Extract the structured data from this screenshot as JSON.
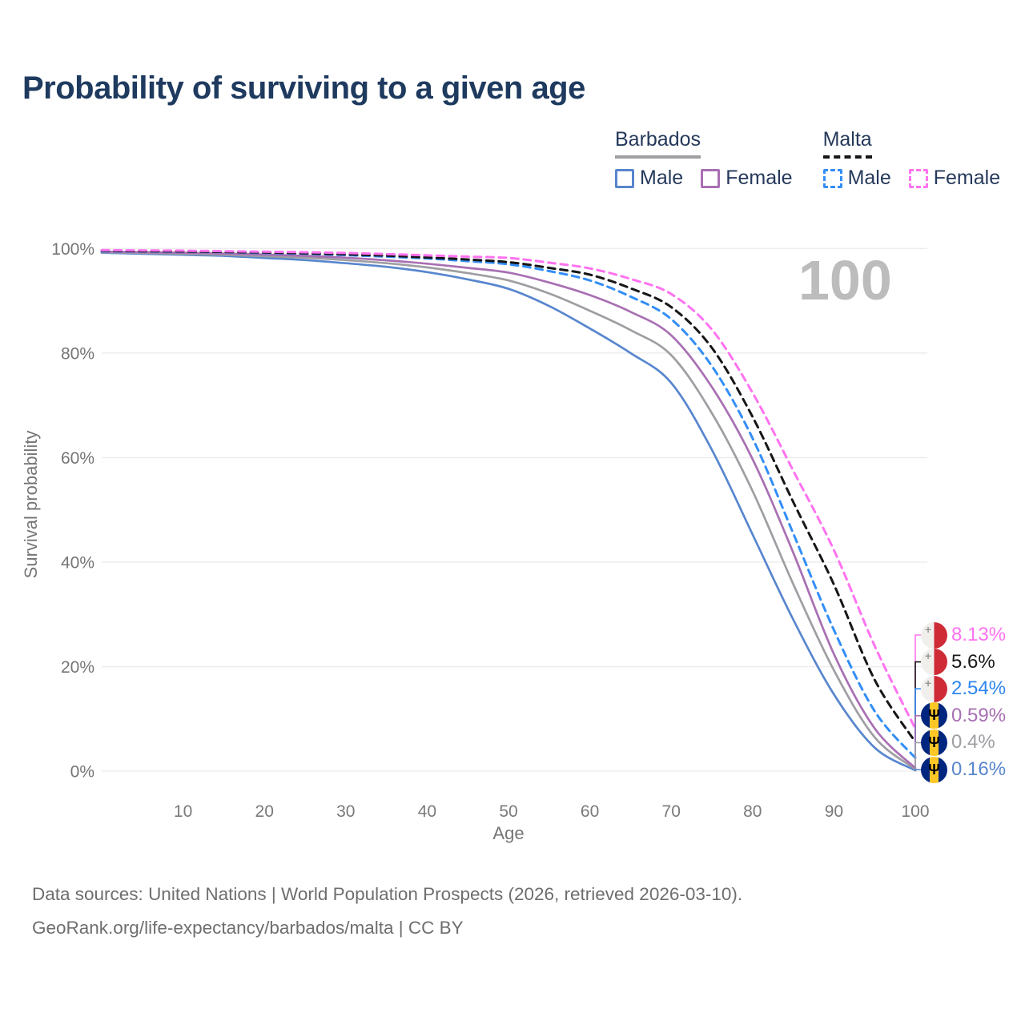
{
  "page": {
    "title": "Probability of surviving to a given age",
    "watermark": "100",
    "footer": {
      "line1": "Data sources: United Nations | World Population Prospects (2026, retrieved 2026-03-10).",
      "line2": "GeoRank.org/life-expectancy/barbados/malta | CC BY"
    }
  },
  "legend": {
    "groups": [
      {
        "name": "Barbados",
        "line_style": "solid",
        "line_color": "#9e9ea3",
        "items": [
          {
            "label": "Male",
            "color": "#5886ce",
            "dashed": false
          },
          {
            "label": "Female",
            "color": "#a86fb3",
            "dashed": false
          }
        ]
      },
      {
        "name": "Malta",
        "line_style": "dashed",
        "line_color": "#161616",
        "items": [
          {
            "label": "Male",
            "color": "#338ef7",
            "dashed": true
          },
          {
            "label": "Female",
            "color": "#ff72f0",
            "dashed": true
          }
        ]
      }
    ]
  },
  "chart_data": {
    "type": "line",
    "title": "Probability of surviving to a given age",
    "xlabel": "Age",
    "ylabel": "Survival probability",
    "xlim": [
      0,
      100
    ],
    "ylim": [
      0,
      100
    ],
    "grid": "horizontal",
    "legend_position": "top-right",
    "x_ticks": [
      10,
      20,
      30,
      40,
      50,
      60,
      70,
      80,
      90,
      100
    ],
    "y_ticks": [
      {
        "value": 0,
        "label": "0%"
      },
      {
        "value": 20,
        "label": "20%"
      },
      {
        "value": 40,
        "label": "40%"
      },
      {
        "value": 60,
        "label": "60%"
      },
      {
        "value": 80,
        "label": "80%"
      },
      {
        "value": 100,
        "label": "100%"
      }
    ],
    "ages": [
      0,
      5,
      10,
      15,
      20,
      25,
      30,
      35,
      40,
      45,
      50,
      55,
      60,
      65,
      70,
      75,
      80,
      85,
      90,
      95,
      100
    ],
    "series": [
      {
        "name": "Barbados Male",
        "country": "Barbados",
        "sex": "Male",
        "color": "#5886ce",
        "dash": false,
        "flag": "barbados",
        "end_value": 0.16,
        "end_label": "0.16%",
        "label_color": "#5886ce",
        "values": [
          99.2,
          99.0,
          98.8,
          98.6,
          98.2,
          97.8,
          97.2,
          96.5,
          95.5,
          94.1,
          92.3,
          89.0,
          84.7,
          80.0,
          74.3,
          61.5,
          45.3,
          29.0,
          14.7,
          4.5,
          0.16
        ]
      },
      {
        "name": "Barbados Total",
        "country": "Barbados",
        "sex": "Total",
        "color": "#9e9ea3",
        "dash": false,
        "flag": "barbados",
        "end_value": 0.4,
        "end_label": "0.4%",
        "label_color": "#9e9ea3",
        "values": [
          99.3,
          99.15,
          99.0,
          98.8,
          98.55,
          98.25,
          97.8,
          97.2,
          96.4,
          95.3,
          93.9,
          91.4,
          88.1,
          84.4,
          79.6,
          68.5,
          53.6,
          35.8,
          19.3,
          6.5,
          0.4
        ]
      },
      {
        "name": "Barbados Female",
        "country": "Barbados",
        "sex": "Female",
        "color": "#a86fb3",
        "dash": false,
        "flag": "barbados",
        "end_value": 0.59,
        "end_label": "0.59%",
        "label_color": "#a86fb3",
        "values": [
          99.4,
          99.3,
          99.2,
          99.05,
          98.85,
          98.6,
          98.25,
          97.75,
          97.1,
          96.3,
          95.4,
          93.5,
          91.1,
          87.9,
          83.4,
          73.5,
          59.7,
          41.8,
          22.4,
          8.2,
          0.59
        ]
      },
      {
        "name": "Malta Male",
        "country": "Malta",
        "sex": "Male",
        "color": "#338ef7",
        "dash": true,
        "flag": "malta",
        "end_value": 2.54,
        "end_label": "2.54%",
        "label_color": "#2e86f0",
        "values": [
          99.5,
          99.45,
          99.4,
          99.3,
          99.15,
          99.0,
          98.75,
          98.45,
          98.1,
          97.6,
          97.0,
          95.7,
          93.9,
          90.8,
          86.5,
          77.5,
          63.7,
          45.5,
          27.0,
          11.5,
          2.54
        ]
      },
      {
        "name": "Malta Total",
        "country": "Malta",
        "sex": "Total",
        "color": "#161616",
        "dash": true,
        "flag": "malta",
        "end_value": 5.6,
        "end_label": "5.6%",
        "label_color": "#1a1a1a",
        "values": [
          99.6,
          99.5,
          99.45,
          99.35,
          99.25,
          99.1,
          98.9,
          98.65,
          98.3,
          97.9,
          97.4,
          96.3,
          95.0,
          92.4,
          88.8,
          81.0,
          67.8,
          51.5,
          35.7,
          17.5,
          5.6
        ]
      },
      {
        "name": "Malta Female",
        "country": "Malta",
        "sex": "Female",
        "color": "#ff72f0",
        "dash": true,
        "flag": "malta",
        "end_value": 8.13,
        "end_label": "8.13%",
        "label_color": "#ff72f0",
        "values": [
          99.7,
          99.65,
          99.6,
          99.5,
          99.4,
          99.3,
          99.15,
          98.95,
          98.7,
          98.45,
          98.2,
          97.3,
          96.2,
          94.2,
          91.3,
          84.5,
          72.4,
          57.5,
          42.3,
          24.0,
          8.13
        ]
      }
    ]
  }
}
